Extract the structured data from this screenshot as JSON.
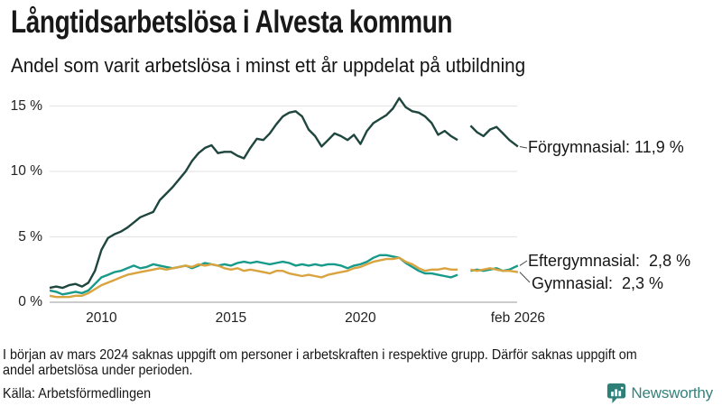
{
  "header": {
    "title": "Långtidsarbetslösa i Alvesta kommun",
    "subtitle": "Andel som varit arbetslösa i minst ett år uppdelat på utbildning"
  },
  "chart_data": {
    "type": "line",
    "title": "Långtidsarbetslösa i Alvesta kommun",
    "xlabel": "",
    "ylabel": "",
    "ylim": [
      0,
      16
    ],
    "grid": true,
    "legend_position": "right-inline",
    "data_gap_note": "values missing around early March 2024",
    "gap_x": [
      2023.75,
      2024.25
    ],
    "colors": {
      "grid": "#e6e6e6",
      "axis": "#cccccc",
      "connector": "#4a4a4a"
    },
    "y_axis": {
      "ticks": [
        {
          "label": "0 %",
          "value": 0
        },
        {
          "label": "5 %",
          "value": 5
        },
        {
          "label": "10 %",
          "value": 10
        },
        {
          "label": "15 %",
          "value": 15
        }
      ]
    },
    "x_axis": {
      "ticks": [
        {
          "label": "2010",
          "year": 2010
        },
        {
          "label": "2015",
          "year": 2015
        },
        {
          "label": "2020",
          "year": 2020
        },
        {
          "label": "feb 2026",
          "year": 2026.08
        }
      ]
    },
    "x": [
      2008,
      2008.25,
      2008.5,
      2008.75,
      2009,
      2009.25,
      2009.5,
      2009.75,
      2010,
      2010.25,
      2010.5,
      2010.75,
      2011,
      2011.25,
      2011.5,
      2011.75,
      2012,
      2012.25,
      2012.5,
      2012.75,
      2013,
      2013.25,
      2013.5,
      2013.75,
      2014,
      2014.25,
      2014.5,
      2014.75,
      2015,
      2015.25,
      2015.5,
      2015.75,
      2016,
      2016.25,
      2016.5,
      2016.75,
      2017,
      2017.25,
      2017.5,
      2017.75,
      2018,
      2018.25,
      2018.5,
      2018.75,
      2019,
      2019.25,
      2019.5,
      2019.75,
      2020,
      2020.25,
      2020.5,
      2020.75,
      2021,
      2021.25,
      2021.5,
      2021.75,
      2022,
      2022.25,
      2022.5,
      2022.75,
      2023,
      2023.25,
      2023.5,
      2023.75,
      2024,
      2024.25,
      2024.5,
      2024.75,
      2025,
      2025.25,
      2025.5,
      2025.75,
      2026.08
    ],
    "series": [
      {
        "name": "Förgymnasial",
        "label": "Förgymnasial: 11,9 %",
        "final_value": "11,9 %",
        "color": "#1f463e",
        "values": [
          1.1,
          1.2,
          1.1,
          1.3,
          1.4,
          1.2,
          1.5,
          2.4,
          4.0,
          4.9,
          5.2,
          5.4,
          5.7,
          6.1,
          6.5,
          6.7,
          6.9,
          7.8,
          8.3,
          8.8,
          9.4,
          10.0,
          10.8,
          11.4,
          11.8,
          12.0,
          11.4,
          11.5,
          11.5,
          11.2,
          11.0,
          11.8,
          12.5,
          12.4,
          12.9,
          13.6,
          14.2,
          14.5,
          14.6,
          14.2,
          13.2,
          12.7,
          11.9,
          12.4,
          12.9,
          12.7,
          12.4,
          12.8,
          12.1,
          13.1,
          13.7,
          14.0,
          14.3,
          14.8,
          15.6,
          14.9,
          14.6,
          14.5,
          14.2,
          13.7,
          12.8,
          13.1,
          12.7,
          12.4,
          null,
          13.5,
          13.0,
          12.7,
          13.2,
          13.4,
          12.9,
          12.4,
          11.9
        ]
      },
      {
        "name": "Eftergymnasial",
        "label": "Eftergymnasial:  2,8 %",
        "final_value": "2,8 %",
        "color": "#189a8a",
        "values": [
          0.9,
          0.8,
          0.6,
          0.7,
          0.8,
          0.7,
          0.9,
          1.4,
          1.9,
          2.1,
          2.3,
          2.4,
          2.6,
          2.8,
          2.6,
          2.7,
          2.9,
          2.8,
          2.7,
          2.6,
          2.7,
          2.8,
          2.6,
          2.8,
          3.0,
          2.9,
          2.8,
          2.9,
          2.8,
          3.0,
          3.1,
          3.0,
          3.1,
          3.0,
          2.9,
          3.0,
          3.1,
          3.0,
          2.8,
          2.9,
          2.8,
          2.9,
          2.8,
          2.9,
          2.9,
          2.8,
          2.6,
          2.8,
          2.9,
          3.1,
          3.4,
          3.6,
          3.6,
          3.5,
          3.4,
          3.0,
          2.7,
          2.4,
          2.2,
          2.2,
          2.1,
          2.0,
          1.9,
          2.1,
          null,
          2.4,
          2.5,
          2.4,
          2.5,
          2.6,
          2.4,
          2.5,
          2.8
        ]
      },
      {
        "name": "Gymnasial",
        "label": "Gymnasial:  2,3 %",
        "final_value": "2,3 %",
        "color": "#d9a440",
        "values": [
          0.5,
          0.4,
          0.4,
          0.4,
          0.5,
          0.5,
          0.7,
          1.0,
          1.3,
          1.5,
          1.7,
          1.9,
          2.1,
          2.2,
          2.3,
          2.4,
          2.5,
          2.6,
          2.5,
          2.6,
          2.7,
          2.8,
          2.7,
          2.9,
          2.8,
          2.9,
          2.8,
          2.6,
          2.5,
          2.6,
          2.4,
          2.5,
          2.4,
          2.3,
          2.2,
          2.4,
          2.4,
          2.2,
          2.1,
          2.0,
          2.1,
          2.0,
          1.9,
          2.1,
          2.2,
          2.3,
          2.4,
          2.6,
          2.7,
          2.9,
          3.1,
          3.2,
          3.3,
          3.3,
          3.4,
          3.1,
          2.9,
          2.6,
          2.4,
          2.5,
          2.5,
          2.6,
          2.5,
          2.5,
          null,
          2.5,
          2.4,
          2.5,
          2.6,
          2.5,
          2.4,
          2.4,
          2.3
        ]
      }
    ]
  },
  "footer": {
    "note_line1": "I början av mars 2024 saknas uppgift om personer i arbetskraften i respektive grupp. Därför saknas uppgift om",
    "note_line2": "andel arbetslösa under perioden.",
    "source": "Källa: Arbetsförmedlingen"
  },
  "branding": {
    "name": "Newsworthy",
    "color": "#35817b",
    "icon_color": "#2e7f78",
    "icon": "newsworthy-bubble-barchart-icon"
  }
}
